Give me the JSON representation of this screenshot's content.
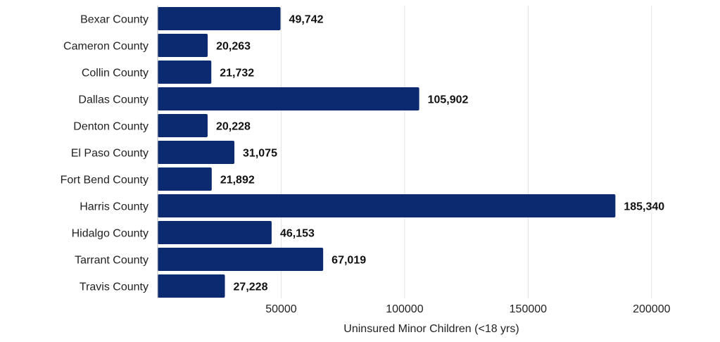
{
  "chart_data": {
    "type": "bar",
    "orientation": "horizontal",
    "categories": [
      "Bexar County",
      "Cameron County",
      "Collin County",
      "Dallas County",
      "Denton County",
      "El Paso County",
      "Fort Bend County",
      "Harris County",
      "Hidalgo County",
      "Tarrant County",
      "Travis County"
    ],
    "values": [
      49742,
      20263,
      21732,
      105902,
      20228,
      31075,
      21892,
      185340,
      46153,
      67019,
      27228
    ],
    "value_labels": [
      "49,742",
      "20,263",
      "21,732",
      "105,902",
      "20,228",
      "31,075",
      "21,892",
      "185,340",
      "46,153",
      "67,019",
      "27,228"
    ],
    "xlabel": "Uninsured Minor Children (<18 yrs)",
    "ylabel": "",
    "xlim": [
      0,
      220000
    ],
    "x_ticks": [
      50000,
      100000,
      150000,
      200000
    ],
    "x_tick_labels": [
      "50000",
      "100000",
      "150000",
      "200000"
    ],
    "grid": "vertical",
    "bar_color": "#0b2a6f"
  }
}
